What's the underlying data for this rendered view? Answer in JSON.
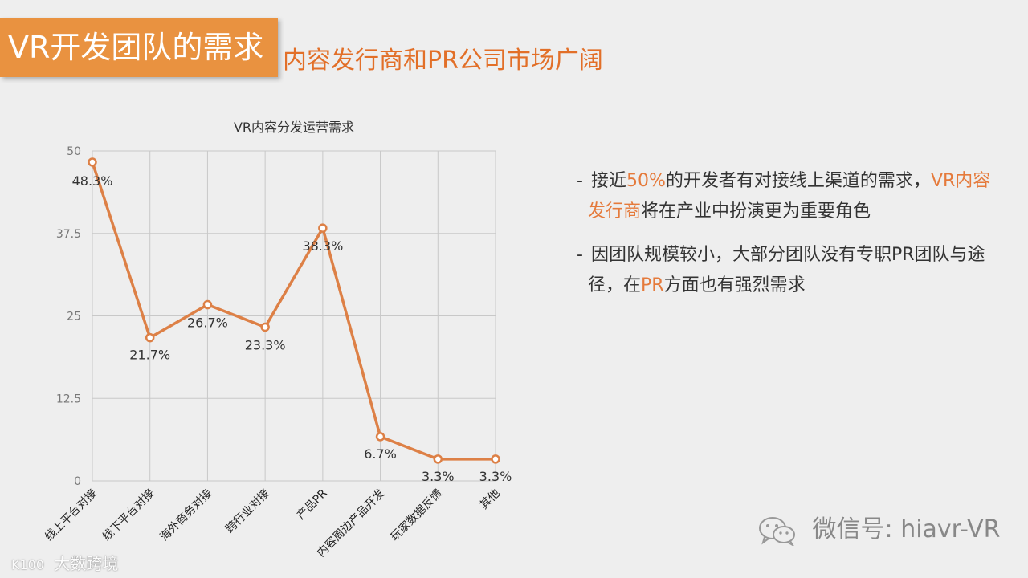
{
  "header": {
    "title": "VR开发团队的需求",
    "subtitle": "内容发行商和PR公司市场广阔"
  },
  "chart_data": {
    "type": "line",
    "title": "VR内容分发运营需求",
    "categories": [
      "线上平台对接",
      "线下平台对接",
      "海外商务对接",
      "跨行业对接",
      "产品PR",
      "内容周边产品开发",
      "玩家数据反馈",
      "其他"
    ],
    "values": [
      48.3,
      21.7,
      26.7,
      23.3,
      38.3,
      6.7,
      3.3,
      3.3
    ],
    "data_labels": [
      "48.3%",
      "21.7%",
      "26.7%",
      "23.3%",
      "38.3%",
      "6.7%",
      "3.3%",
      "3.3%"
    ],
    "ylim": [
      0,
      50
    ],
    "yticks": [
      0,
      12.5,
      25,
      37.5,
      50
    ],
    "ytick_labels": [
      "0",
      "12.5",
      "25",
      "37.5",
      "50"
    ],
    "grid": true,
    "line_color": "#dd8046"
  },
  "bullets": [
    {
      "dash": "-",
      "parts": [
        {
          "text": "接近",
          "hl": false
        },
        {
          "text": "50%",
          "hl": true
        },
        {
          "text": "的开发者有对接线上渠道的需求，",
          "hl": false
        },
        {
          "text": "VR内容发行商",
          "hl": true
        },
        {
          "text": "将在产业中扮演更为重要角色",
          "hl": false
        }
      ]
    },
    {
      "dash": "-",
      "parts": [
        {
          "text": "因团队规模较小，大部分团队没有专职PR团队与途径，在",
          "hl": false
        },
        {
          "text": "PR",
          "hl": true
        },
        {
          "text": "方面也有强烈需求",
          "hl": false
        }
      ]
    }
  ],
  "footer": {
    "wechat_label": "微信号: hiavr-VR",
    "watermark_logo": "K100",
    "watermark_text": "大数跨境"
  },
  "colors": {
    "accent": "#e99240",
    "highlight": "#e57a3b",
    "background": "#eeeeee"
  }
}
